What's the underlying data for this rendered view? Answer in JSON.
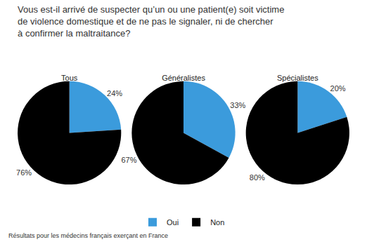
{
  "title": "Vous est-il arrivé de suspecter qu’un ou une patient(e) soit victime\nde violence domestique et de ne pas le signaler, ni de chercher\nà confirmer la maltraitance?",
  "note": "Résultats pour les médecins français exerçant en France",
  "chart_data": [
    {
      "type": "pie",
      "title": "Tous",
      "categories": [
        "Oui",
        "Non"
      ],
      "values": [
        24,
        76
      ],
      "value_labels": [
        "24%",
        "76%"
      ],
      "colors": [
        "#3b9bdc",
        "#000000"
      ],
      "data_labels": true,
      "legend": "bottom"
    },
    {
      "type": "pie",
      "title": "Généralistes",
      "categories": [
        "Oui",
        "Non"
      ],
      "values": [
        33,
        67
      ],
      "value_labels": [
        "33%",
        "67%"
      ],
      "colors": [
        "#3b9bdc",
        "#000000"
      ],
      "data_labels": true
    },
    {
      "type": "pie",
      "title": "Spécialistes",
      "categories": [
        "Oui",
        "Non"
      ],
      "values": [
        20,
        80
      ],
      "value_labels": [
        "20%",
        "80%"
      ],
      "colors": [
        "#3b9bdc",
        "#000000"
      ],
      "data_labels": true
    }
  ]
}
